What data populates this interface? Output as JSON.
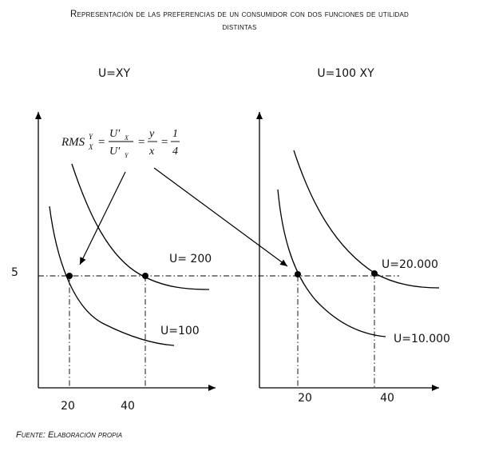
{
  "figure": {
    "title_line1": "Representación de las preferencias de un consumidor con dos funciones de utilidad",
    "title_line2": "distintas",
    "source": "Fuente: Elaboración propia"
  },
  "left_panel": {
    "function_label": "U=XY",
    "upper_curve_label": "U= 200",
    "lower_curve_label": "U=100",
    "x_ticks": [
      "20",
      "40"
    ]
  },
  "right_panel": {
    "function_label": "U=100 XY",
    "upper_curve_label": "U=20.000",
    "lower_curve_label": "U=10.000",
    "x_ticks": [
      "20",
      "40"
    ]
  },
  "shared": {
    "y_tick": "5"
  },
  "formula": {
    "lhs": "RMS",
    "lhs_sup": "Y",
    "lhs_sub": "X",
    "num1": "U'",
    "num1_sub": "X",
    "den1": "U'",
    "den1_sub": "Y",
    "num2": "y",
    "den2": "x",
    "num3": "1",
    "den3": "4",
    "eq": "="
  }
}
